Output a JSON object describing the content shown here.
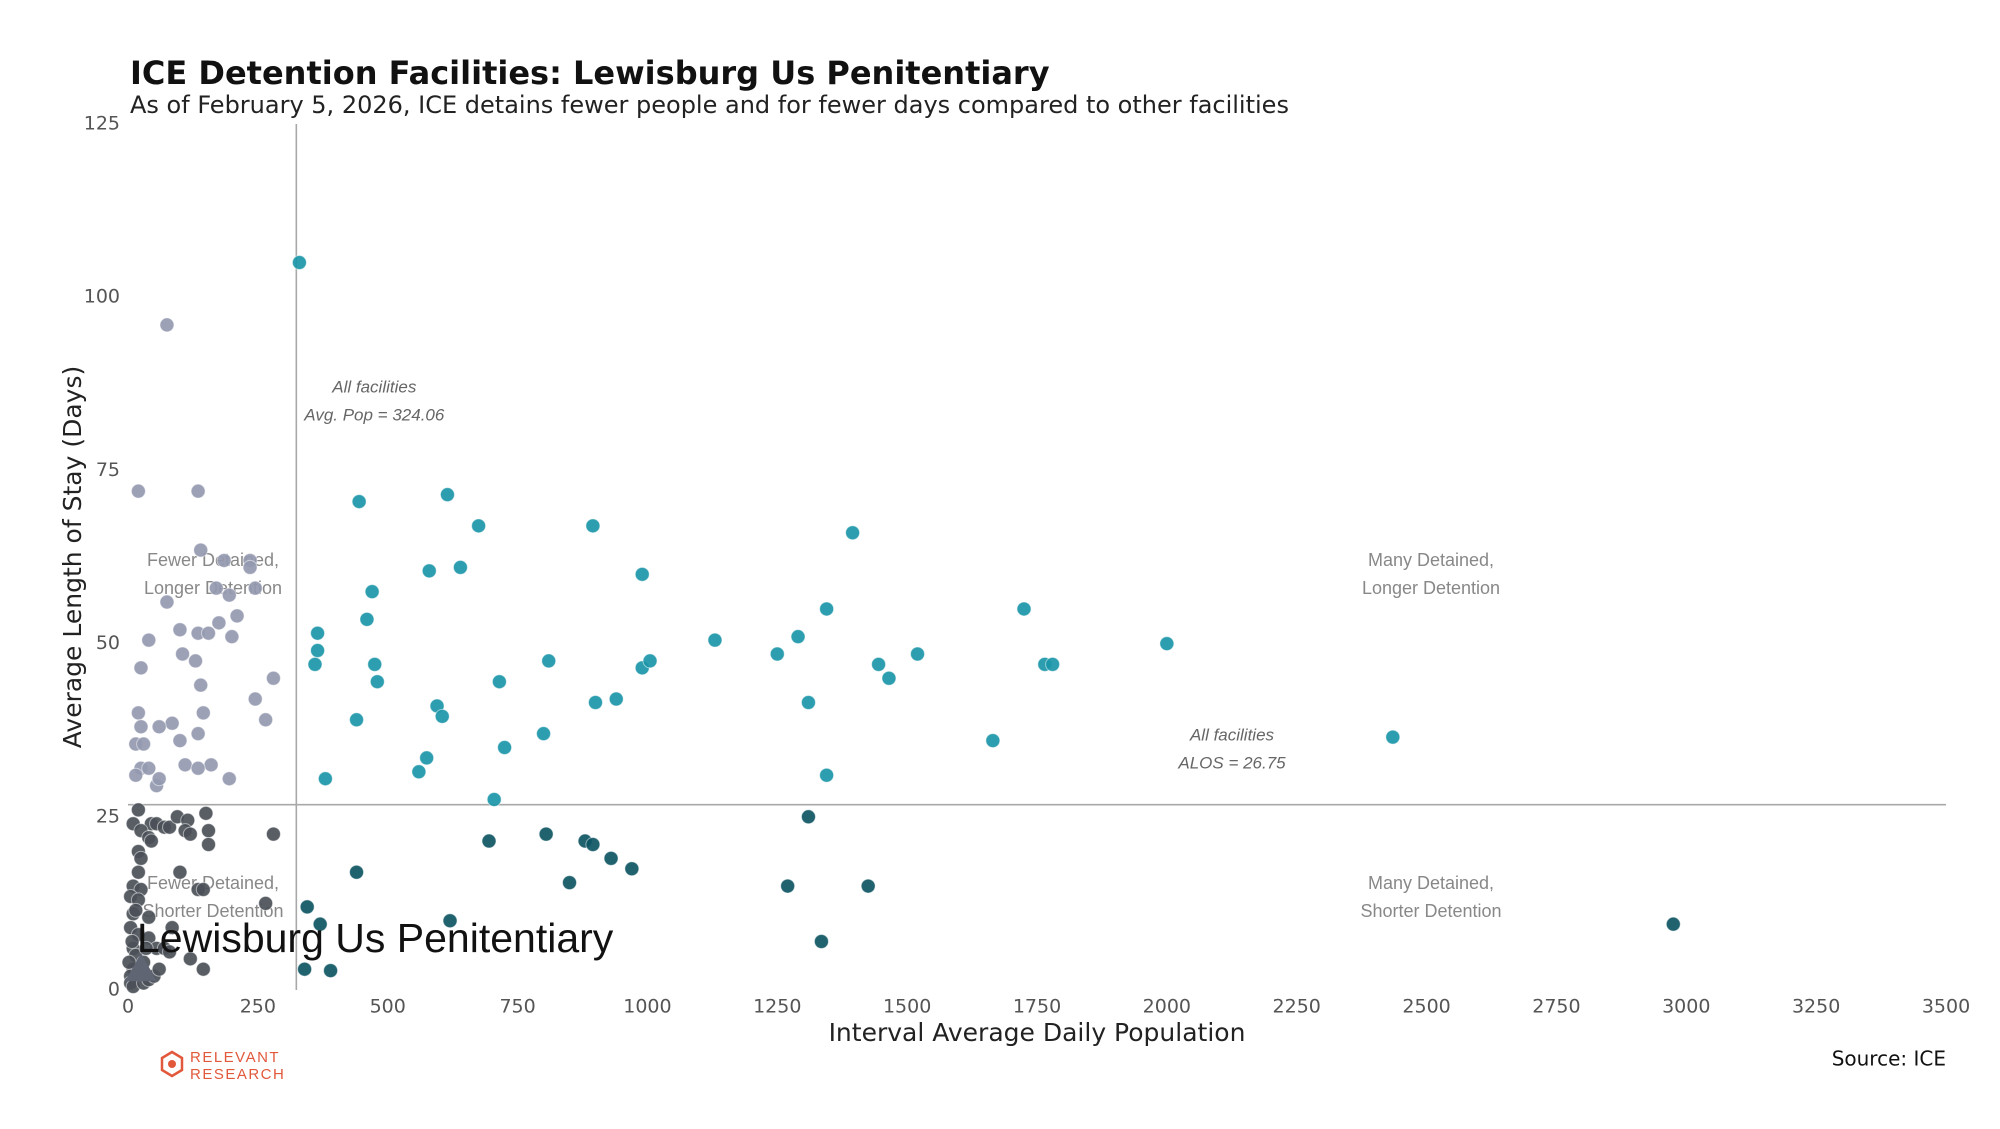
{
  "chart_data": {
    "type": "scatter",
    "title": "ICE Detention Facilities: Lewisburg Us Penitentiary",
    "subtitle": "As of February 5, 2026, ICE detains fewer people and for fewer days compared to other facilities",
    "x_label": "Interval Average Daily Population",
    "y_label": "Average Length of Stay (Days)",
    "xlim": [
      0,
      3500
    ],
    "xticks": [
      0,
      250,
      500,
      750,
      1000,
      1250,
      1500,
      1750,
      2000,
      2250,
      2500,
      2750,
      3000,
      3250,
      3500
    ],
    "ylim": [
      0,
      125
    ],
    "yticks": [
      0,
      25,
      50,
      75,
      100,
      125
    ],
    "series": [
      {
        "color": "#1b96a8",
        "x": [
          330,
          445,
          615,
          675,
          895,
          1395,
          470,
          640,
          580,
          990,
          460,
          365,
          365,
          360,
          475,
          480,
          440,
          380,
          595,
          605,
          575,
          560,
          715,
          725,
          800,
          810,
          705,
          900,
          940,
          990,
          1005,
          1130,
          1250,
          1290,
          1310,
          1345,
          1345,
          1445,
          1465,
          1520,
          1665,
          1725,
          1765,
          1780,
          2000,
          2435
        ],
        "values": [
          105,
          70.5,
          71.5,
          67,
          67,
          66,
          57.5,
          61,
          60.5,
          60,
          53.5,
          51.5,
          49,
          47,
          47,
          44.5,
          39,
          30.5,
          41,
          39.5,
          33.5,
          31.5,
          44.5,
          35,
          37,
          47.5,
          27.5,
          41.5,
          42,
          46.5,
          47.5,
          50.5,
          48.5,
          51,
          41.5,
          55,
          31,
          47,
          45,
          48.5,
          36,
          55,
          47,
          47,
          50,
          36.5
        ]
      },
      {
        "color": "#0e5563",
        "x": [
          345,
          440,
          695,
          805,
          880,
          895,
          930,
          970,
          850,
          1310,
          1270,
          1425,
          620,
          370,
          340,
          390,
          1335,
          2975
        ],
        "values": [
          12,
          17,
          21.5,
          22.5,
          21.5,
          21,
          19,
          17.5,
          15.5,
          25,
          15,
          15,
          10,
          9.5,
          3,
          2.8,
          7,
          9.5
        ]
      },
      {
        "color": "#9499b0",
        "x": [
          75,
          20,
          135,
          140,
          185,
          235,
          235,
          245,
          170,
          195,
          75,
          210,
          175,
          100,
          135,
          155,
          200,
          40,
          105,
          130,
          25,
          280,
          140,
          245,
          20,
          145,
          265,
          85,
          60,
          25,
          15,
          30,
          100,
          135,
          160,
          110,
          135,
          25,
          40,
          15,
          55,
          60,
          195
        ],
        "values": [
          96,
          72,
          72,
          63.5,
          62,
          62,
          61,
          58,
          58,
          57,
          56,
          54,
          53,
          52,
          51.5,
          51.5,
          51,
          50.5,
          48.5,
          47.5,
          46.5,
          45,
          44,
          42,
          40,
          40,
          39,
          38.5,
          38,
          38,
          35.5,
          35.5,
          36,
          37,
          32.5,
          32.5,
          32,
          32,
          32,
          31,
          29.5,
          30.5,
          30.5
        ]
      },
      {
        "color": "#4b5058",
        "x": [
          20,
          10,
          45,
          55,
          70,
          80,
          95,
          115,
          150,
          25,
          40,
          110,
          120,
          155,
          280,
          45,
          155,
          20,
          25,
          20,
          100,
          10,
          25,
          135,
          145,
          5,
          20,
          265,
          10,
          15,
          40,
          5,
          85,
          20,
          40,
          10,
          55,
          70,
          120,
          15,
          30,
          10,
          5,
          20,
          145,
          5,
          10,
          30,
          40,
          50,
          60,
          2,
          8,
          35,
          80
        ],
        "values": [
          26,
          24,
          24,
          24,
          23.5,
          23.5,
          25,
          24.5,
          25.5,
          23,
          22,
          23,
          22.5,
          23,
          22.5,
          21.5,
          21,
          20,
          19,
          17,
          17,
          15,
          14.5,
          14.5,
          14.5,
          13.5,
          13,
          12.5,
          11,
          11.5,
          10.5,
          9,
          9,
          8,
          7.5,
          6,
          6,
          6,
          4.5,
          5,
          4,
          3,
          2,
          2.5,
          3,
          1,
          0.5,
          1,
          1.5,
          2,
          3,
          4,
          7,
          6,
          5.5
        ]
      }
    ],
    "reference_lines": [
      {
        "axis": "x",
        "value": 324.06,
        "color": "#a8a8a8",
        "label": [
          "All facilities",
          "Avg. Pop = 324.06"
        ]
      },
      {
        "axis": "y",
        "value": 26.75,
        "color": "#a8a8a8",
        "label": [
          "All facilities",
          "ALOS = 26.75"
        ]
      }
    ],
    "quadrant_labels": [
      [
        "Fewer Detained,",
        "Longer Detention"
      ],
      [
        "Many Detained,",
        "Longer Detention"
      ],
      [
        "Fewer Detained,",
        "Shorter Detention"
      ],
      [
        "Many Detained,",
        "Shorter Detention"
      ]
    ],
    "highlight": {
      "label": "Lewisburg Us Penitentiary",
      "x": 25,
      "y": 3,
      "color": "#5f6573"
    },
    "source": "Source: ICE",
    "logo": [
      "RELEVANT",
      "RESEARCH"
    ]
  }
}
